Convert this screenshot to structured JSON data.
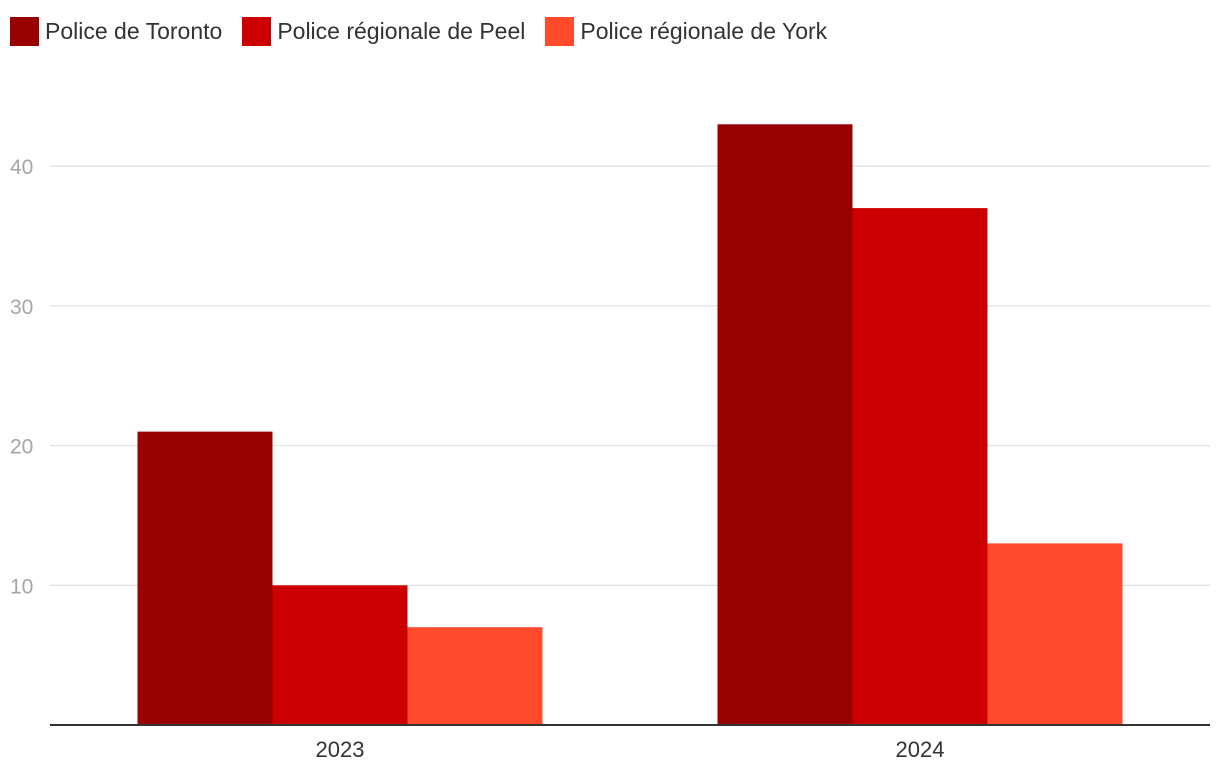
{
  "chart_data": {
    "type": "bar",
    "categories": [
      "2023",
      "2024"
    ],
    "series": [
      {
        "name": "Police de Toronto",
        "values": [
          21,
          43
        ],
        "color": "#990000"
      },
      {
        "name": "Police régionale de Peel",
        "values": [
          10,
          37
        ],
        "color": "#cc0000"
      },
      {
        "name": "Police régionale de York",
        "values": [
          7,
          13
        ],
        "color": "#ff4b2b"
      }
    ],
    "yticks": [
      10,
      20,
      30,
      40
    ],
    "ylim": [
      0,
      45
    ],
    "grid": true,
    "legend_position": "top-left",
    "title": "",
    "xlabel": "",
    "ylabel": ""
  }
}
